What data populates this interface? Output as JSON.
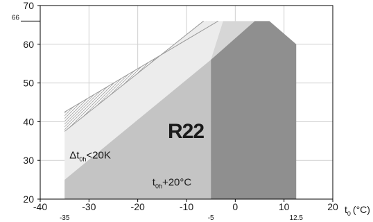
{
  "chart_data": {
    "type": "area",
    "title": "R22",
    "xlabel_parts": {
      "main": "t",
      "sub": "0",
      "unit": "(°C)"
    },
    "ylabel": "",
    "xlim": [
      -40,
      20
    ],
    "ylim": [
      20,
      70
    ],
    "x_ticks": [
      -40,
      -30,
      -20,
      -10,
      0,
      10,
      20
    ],
    "x_ticks_labels": [
      "-40",
      "-30",
      "-20",
      "-10",
      "0",
      "10",
      "20"
    ],
    "x_extra_ticks": [
      -35,
      -5,
      12.5
    ],
    "x_extra_labels": [
      "-35",
      "-5",
      "12.5"
    ],
    "y_ticks": [
      20,
      30,
      40,
      50,
      60,
      70
    ],
    "y_ticks_labels": [
      "20",
      "30",
      "40",
      "50",
      "60",
      "70"
    ],
    "y_extra_ticks": [
      66
    ],
    "y_extra_labels": [
      "66"
    ],
    "grid": true,
    "annotations": [
      {
        "id": "delta",
        "parts": [
          "Δt",
          "0h",
          "<20K"
        ],
        "x": -34,
        "y": 30.5
      },
      {
        "id": "toh",
        "parts": [
          "t",
          "0h",
          "+20°C"
        ],
        "x": -17,
        "y": 23.5
      }
    ],
    "regions": [
      {
        "name": "hatched",
        "color": "#d8d8d8",
        "points": [
          [
            -35,
            42.5
          ],
          [
            -3.5,
            66
          ],
          [
            -6.5,
            66
          ],
          [
            -35,
            37.5
          ]
        ]
      },
      {
        "name": "light",
        "color": "#ececec",
        "points": [
          [
            -35,
            37.5
          ],
          [
            -6.5,
            66
          ],
          [
            -2.5,
            66
          ],
          [
            -5,
            56
          ],
          [
            -35,
            25
          ],
          [
            -35,
            37.5
          ]
        ]
      },
      {
        "name": "medium",
        "color": "#c4c4c4",
        "points": [
          [
            -35,
            20
          ],
          [
            -5,
            20
          ],
          [
            -5,
            56
          ],
          [
            -35,
            25
          ]
        ]
      },
      {
        "name": "medium-upper",
        "color": "#d6d6d6",
        "points": [
          [
            -5,
            56
          ],
          [
            -2.5,
            66
          ],
          [
            4,
            66
          ],
          [
            -5,
            56
          ]
        ]
      },
      {
        "name": "dark",
        "color": "#8f8f8f",
        "points": [
          [
            -5,
            20
          ],
          [
            12.5,
            20
          ],
          [
            12.5,
            60
          ],
          [
            7,
            66
          ],
          [
            4,
            66
          ],
          [
            -5,
            56
          ]
        ]
      }
    ],
    "lines": [
      {
        "name": "upper-boundary",
        "points": [
          [
            -35,
            42.5
          ],
          [
            -3.5,
            66
          ]
        ]
      },
      {
        "name": "mid-boundary",
        "points": [
          [
            -35,
            37.5
          ],
          [
            -6.5,
            66
          ]
        ]
      }
    ]
  }
}
